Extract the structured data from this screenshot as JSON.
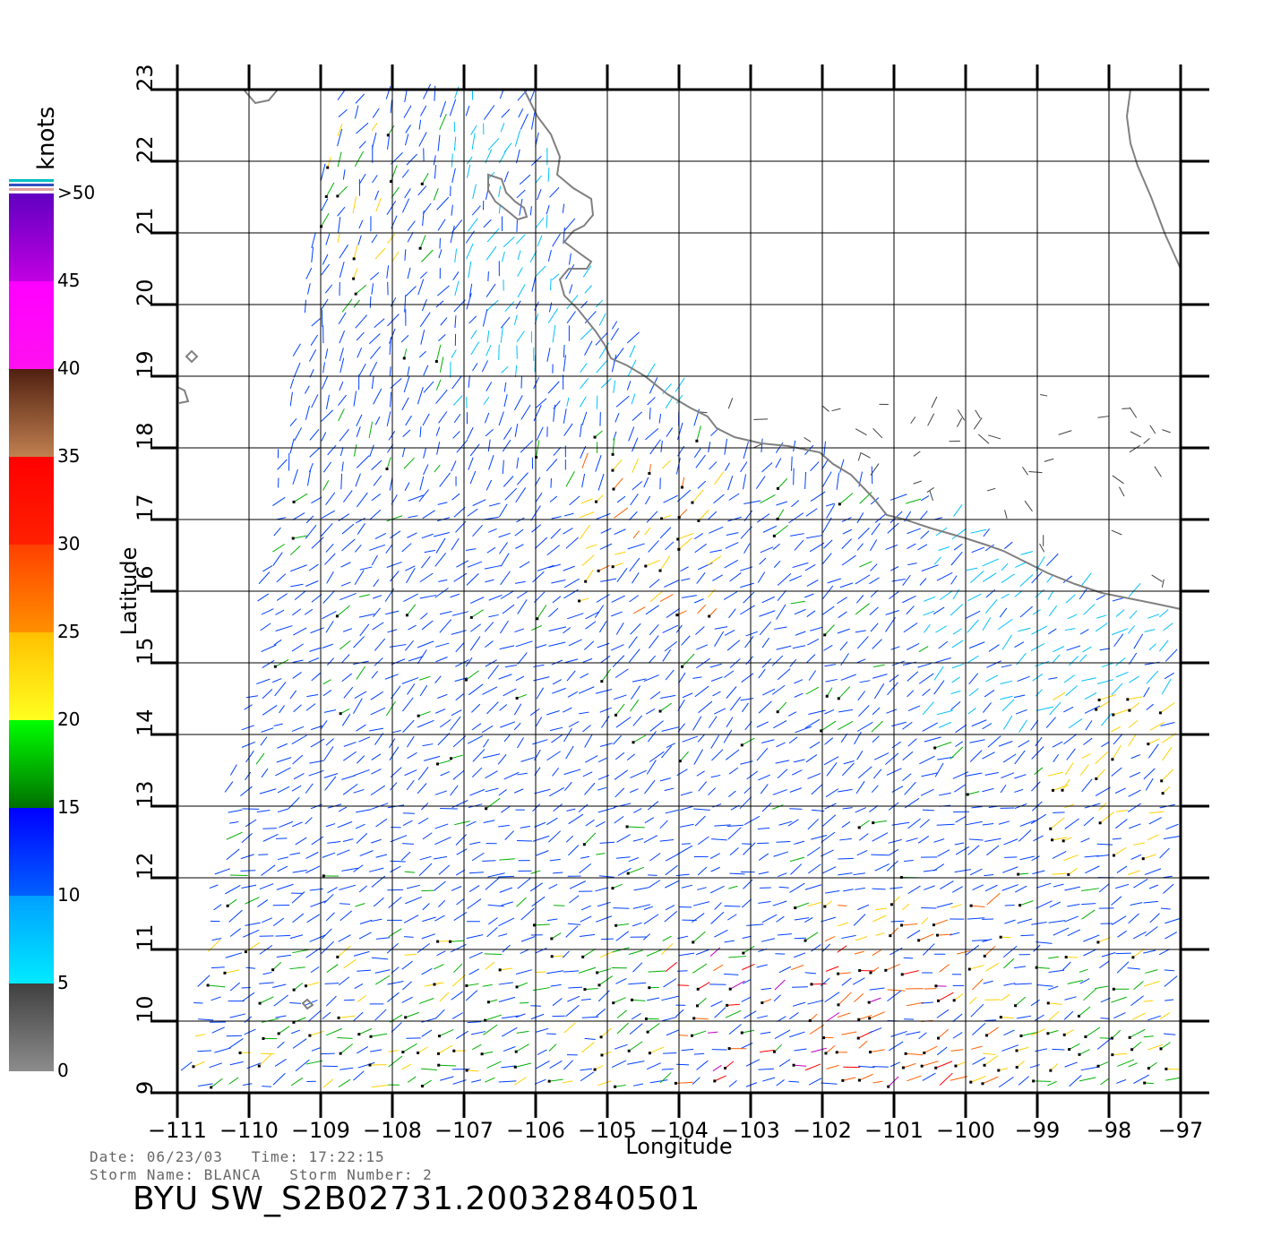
{
  "legend": {
    "unit": "knots",
    "bands": [
      {
        "label": "0",
        "value": 0,
        "top": "#404040",
        "bottom": "#8c8c8c"
      },
      {
        "label": "5",
        "value": 5,
        "top": "#00a0ff",
        "bottom": "#00eaff"
      },
      {
        "label": "10",
        "value": 10,
        "top": "#0000ff",
        "bottom": "#0060ff"
      },
      {
        "label": "15",
        "value": 15,
        "top": "#00ff00",
        "bottom": "#007000"
      },
      {
        "label": "20",
        "value": 20,
        "top": "#ffc000",
        "bottom": "#ffff20"
      },
      {
        "label": "25",
        "value": 25,
        "top": "#ff4000",
        "bottom": "#ff9000"
      },
      {
        "label": "30",
        "value": 30,
        "top": "#ff0000",
        "bottom": "#ff2000"
      },
      {
        "label": "35",
        "value": 35,
        "top": "#502010",
        "bottom": "#c08050"
      },
      {
        "label": "40",
        "value": 40,
        "top": "#ff00ff",
        "bottom": "#ff10f0"
      },
      {
        "label": "45",
        "value": 45,
        "top": "#6000c0",
        "bottom": "#c000e0"
      },
      {
        "label": ">50",
        "value": 50,
        "top": "#6000c0",
        "bottom": "#6000c0"
      }
    ]
  },
  "map": {
    "xlabel": "Longitude",
    "ylabel": "Latitude",
    "lon_ticks": [
      "-111",
      "-110",
      "-109",
      "-108",
      "-107",
      "-106",
      "-105",
      "-104",
      "-103",
      "-102",
      "-101",
      "-100",
      "-99",
      "-98",
      "-97"
    ],
    "lat_ticks": [
      "9",
      "10",
      "11",
      "12",
      "13",
      "14",
      "15",
      "16",
      "17",
      "18",
      "19",
      "20",
      "21",
      "22",
      "23"
    ],
    "lon_range": [
      -111,
      -97
    ],
    "lat_range": [
      9,
      23
    ],
    "coast_color": "#808080"
  },
  "footer": {
    "line1": "Date: 06/23/03   Time: 17:22:15",
    "line2": "Storm Name: BLANCA   Storm Number: 2",
    "product": "BYU SW_S2B02731.20032840501"
  },
  "wind_colors": {
    "calm": "#404040",
    "light": "#00c0ff",
    "moderate": "#0040ff",
    "fresh": "#00b000",
    "strong": "#ffd000",
    "gale": "#ff6000",
    "storm": "#ff0000",
    "violent": "#c000c0"
  }
}
